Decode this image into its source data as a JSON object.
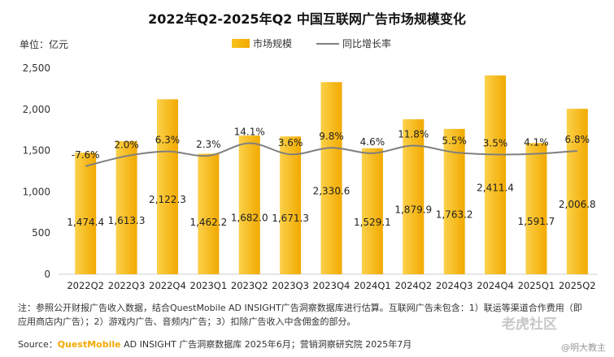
{
  "chart_data": {
    "type": "bar",
    "title": "2022年Q2-2025年Q2 中国互联网广告市场规模变化",
    "ylabel": "单位：亿元",
    "ylim": [
      0,
      2500
    ],
    "yticks": [
      "0",
      "500",
      "1,000",
      "1,500",
      "2,000",
      "2,500"
    ],
    "categories": [
      "2022Q2",
      "2022Q3",
      "2022Q4",
      "2023Q1",
      "2023Q2",
      "2023Q3",
      "2023Q4",
      "2024Q1",
      "2024Q2",
      "2024Q3",
      "2024Q4",
      "2025Q1",
      "2025Q2"
    ],
    "series": [
      {
        "name": "市场规模",
        "type": "bar",
        "values": [
          1474.4,
          1613.3,
          2122.3,
          1462.2,
          1682.0,
          1671.3,
          2330.6,
          1529.1,
          1879.9,
          1763.2,
          2411.4,
          1591.7,
          2006.8
        ],
        "labels": [
          "1,474.4",
          "1,613.3",
          "2,122.3",
          "1,462.2",
          "1,682.0",
          "1,671.3",
          "2,330.6",
          "1,529.1",
          "1,879.9",
          "1,763.2",
          "2,411.4",
          "1,591.7",
          "2,006.8"
        ]
      },
      {
        "name": "同比增长率",
        "type": "line",
        "values": [
          -7.6,
          2.0,
          6.3,
          2.3,
          14.1,
          3.6,
          9.8,
          4.6,
          11.8,
          5.5,
          3.5,
          4.1,
          6.8
        ],
        "labels": [
          "-7.6%",
          "2.0%",
          "6.3%",
          "2.3%",
          "14.1%",
          "3.6%",
          "9.8%",
          "4.6%",
          "11.8%",
          "5.5%",
          "3.5%",
          "4.1%",
          "6.8%"
        ]
      }
    ],
    "legend": "top-center",
    "grid": false,
    "colors": {
      "bar": "#f5b800",
      "bar_light": "#fbd14a",
      "line": "#7f7f7f"
    }
  },
  "note": "注：参照公开财报广告收入数据，结合QuestMobile AD INSIGHT广告洞察数据库进行估算。互联网广告未包含：1）联运等渠道合作费用（即应用商店内广告）；2）游戏内广告、音频内广告；3）扣除广告收入中含佣金的部分。",
  "source_prefix": "Source：",
  "source_brand": "QuestMobile",
  "source_rest": " AD INSIGHT 广告洞察数据库 2025年6月；营销洞察研究院 2025年7月",
  "watermark_community": "老虎社区",
  "watermark_user": "@明大教主"
}
